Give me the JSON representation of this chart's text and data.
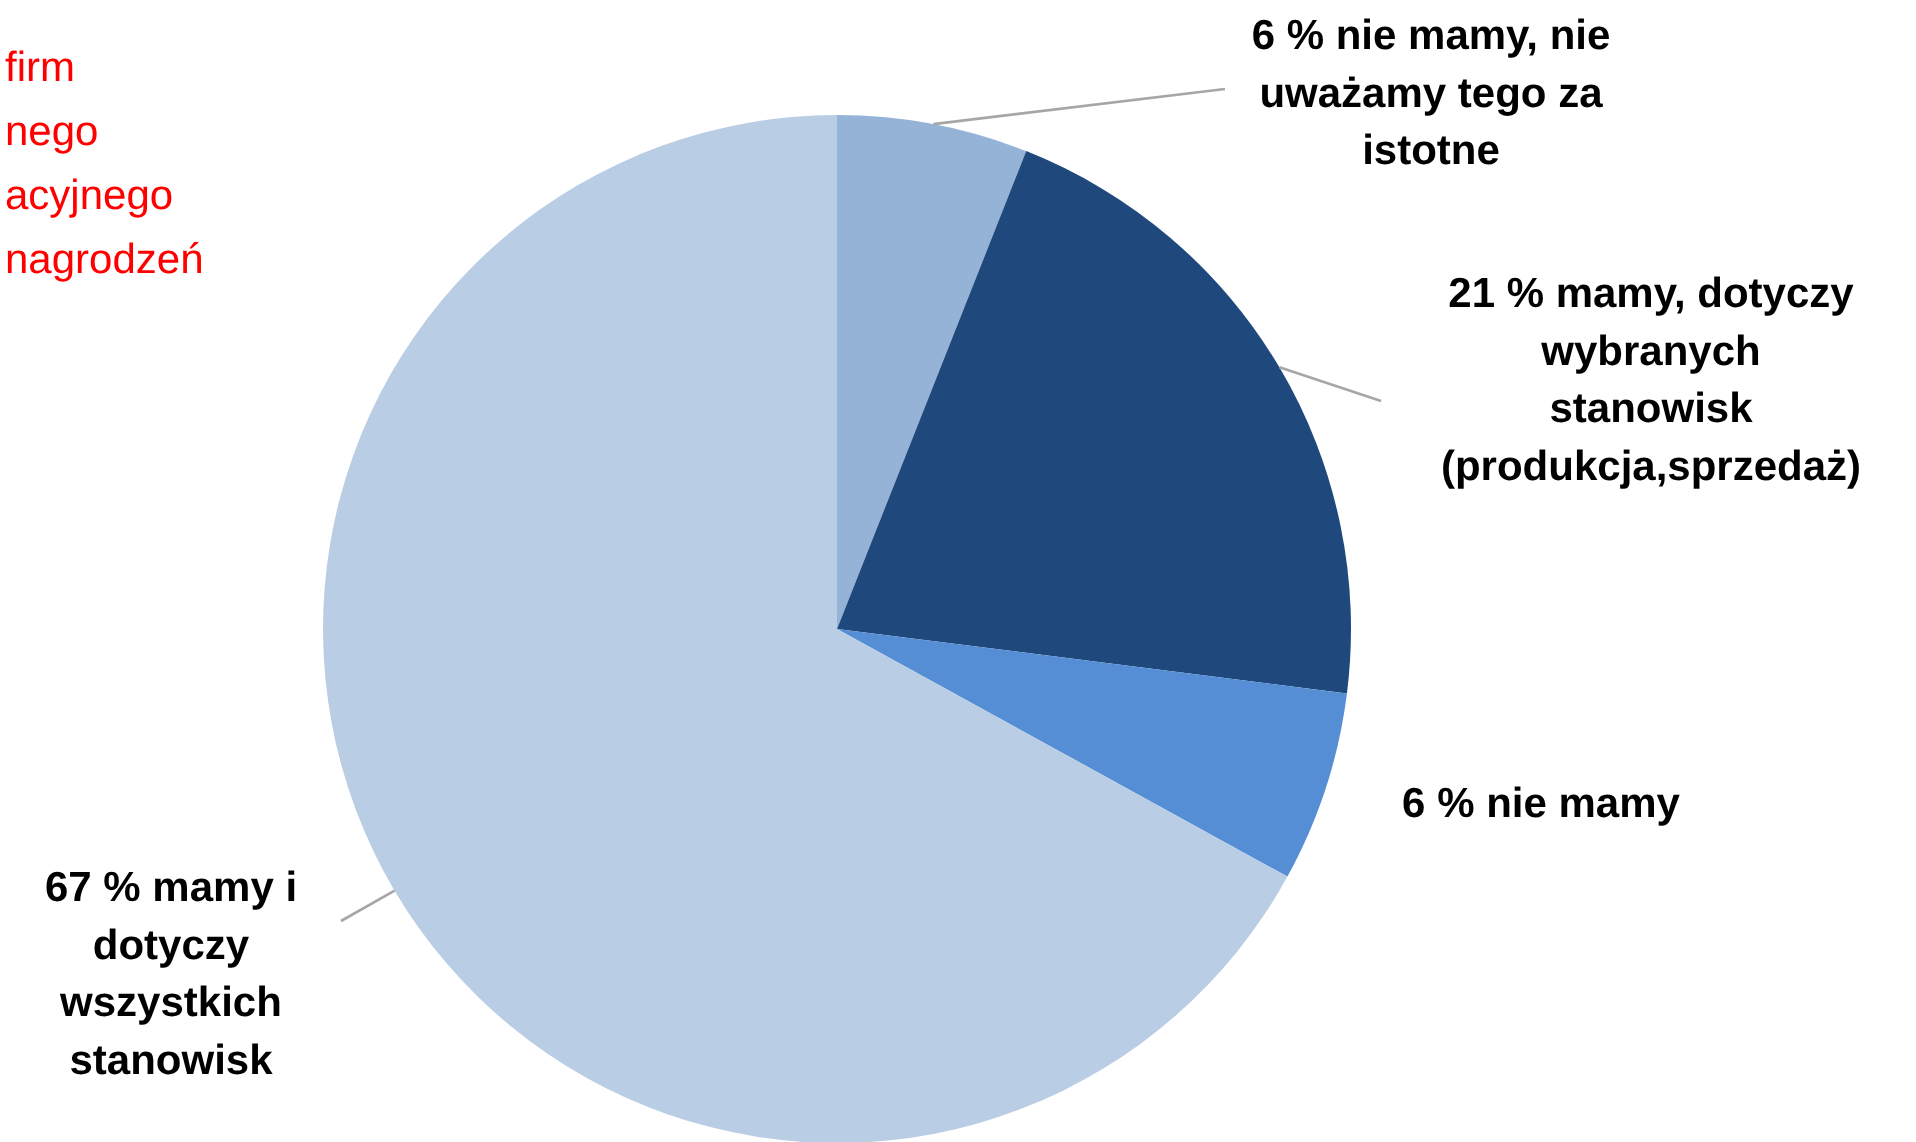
{
  "chart_data": {
    "type": "pie",
    "categories": [
      "nie mamy, nie uważamy tego za istotne",
      "mamy, dotyczy wybranych stanowisk (produkcja,sprzedaż)",
      "nie mamy",
      "mamy i dotyczy wszystkich stanowisk"
    ],
    "values": [
      6,
      21,
      6,
      67
    ],
    "value_labels": [
      "6 %",
      "21 %",
      "6 %",
      "67 %"
    ],
    "colors": [
      "#95b3d7",
      "#1f497d",
      "#558ed5",
      "#b9cde5"
    ],
    "annotations": [
      "firm",
      "nego",
      "acyjnego",
      "nagrodzeń"
    ]
  }
}
